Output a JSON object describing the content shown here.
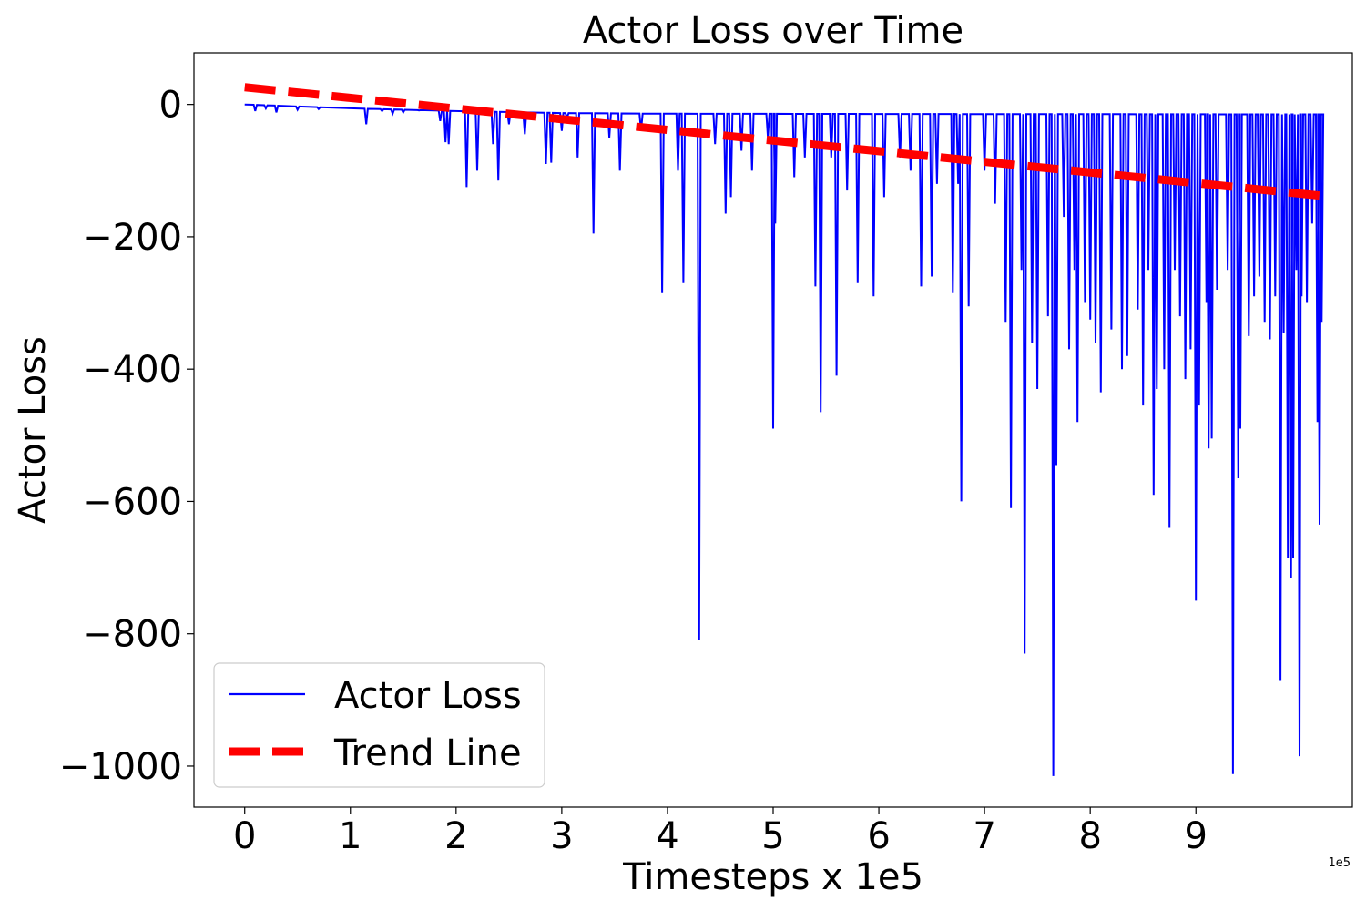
{
  "chart_data": {
    "type": "line",
    "title": "Actor Loss over Time",
    "xlabel": "Timesteps x 1e5",
    "ylabel": "Actor Loss",
    "x_offset_label": "1e5",
    "xlim": [
      -0.48,
      10.48
    ],
    "ylim": [
      -1062,
      78
    ],
    "x_ticks": [
      0,
      1,
      2,
      3,
      4,
      5,
      6,
      7,
      8,
      9
    ],
    "x_tick_labels": [
      "0",
      "1",
      "2",
      "3",
      "4",
      "5",
      "6",
      "7",
      "8",
      "9"
    ],
    "y_ticks": [
      0,
      -200,
      -400,
      -600,
      -800,
      -1000
    ],
    "y_tick_labels": [
      "0",
      "−200",
      "−400",
      "−600",
      "−800",
      "−1000"
    ],
    "grid": false,
    "legend_position": "lower-left",
    "series": [
      {
        "name": "Actor Loss",
        "style": "solid",
        "color": "#0000ff",
        "baseline": [
          [
            0,
            0
          ],
          [
            1.0,
            -6
          ],
          [
            2.0,
            -10
          ],
          [
            3.0,
            -13
          ],
          [
            4.0,
            -14
          ],
          [
            10.0,
            -15
          ]
        ],
        "spikes": [
          [
            0.1,
            -10
          ],
          [
            0.2,
            -6
          ],
          [
            0.3,
            -12
          ],
          [
            0.5,
            -8
          ],
          [
            0.7,
            -7
          ],
          [
            1.15,
            -30
          ],
          [
            1.3,
            -10
          ],
          [
            1.4,
            -14
          ],
          [
            1.5,
            -12
          ],
          [
            1.65,
            -9
          ],
          [
            1.85,
            -25
          ],
          [
            1.9,
            -57
          ],
          [
            1.93,
            -60
          ],
          [
            2.1,
            -125
          ],
          [
            2.2,
            -100
          ],
          [
            2.35,
            -60
          ],
          [
            2.4,
            -115
          ],
          [
            2.5,
            -30
          ],
          [
            2.65,
            -45
          ],
          [
            2.85,
            -90
          ],
          [
            2.9,
            -88
          ],
          [
            3.0,
            -40
          ],
          [
            3.05,
            -20
          ],
          [
            3.15,
            -80
          ],
          [
            3.3,
            -195
          ],
          [
            3.45,
            -50
          ],
          [
            3.55,
            -100
          ],
          [
            3.75,
            -40
          ],
          [
            3.95,
            -285
          ],
          [
            4.1,
            -100
          ],
          [
            4.15,
            -270
          ],
          [
            4.3,
            -810
          ],
          [
            4.45,
            -60
          ],
          [
            4.55,
            -165
          ],
          [
            4.6,
            -140
          ],
          [
            4.7,
            -70
          ],
          [
            4.8,
            -100
          ],
          [
            4.95,
            -50
          ],
          [
            5.0,
            -490
          ],
          [
            5.02,
            -180
          ],
          [
            5.2,
            -110
          ],
          [
            5.3,
            -80
          ],
          [
            5.4,
            -275
          ],
          [
            5.45,
            -465
          ],
          [
            5.55,
            -80
          ],
          [
            5.6,
            -410
          ],
          [
            5.7,
            -130
          ],
          [
            5.8,
            -270
          ],
          [
            5.95,
            -290
          ],
          [
            6.05,
            -140
          ],
          [
            6.2,
            -80
          ],
          [
            6.3,
            -100
          ],
          [
            6.4,
            -275
          ],
          [
            6.5,
            -260
          ],
          [
            6.55,
            -120
          ],
          [
            6.7,
            -285
          ],
          [
            6.75,
            -120
          ],
          [
            6.78,
            -600
          ],
          [
            6.85,
            -305
          ],
          [
            7.0,
            -100
          ],
          [
            7.1,
            -150
          ],
          [
            7.2,
            -330
          ],
          [
            7.25,
            -610
          ],
          [
            7.35,
            -250
          ],
          [
            7.38,
            -830
          ],
          [
            7.45,
            -360
          ],
          [
            7.5,
            -430
          ],
          [
            7.6,
            -320
          ],
          [
            7.65,
            -1015
          ],
          [
            7.68,
            -545
          ],
          [
            7.75,
            -170
          ],
          [
            7.8,
            -370
          ],
          [
            7.85,
            -250
          ],
          [
            7.88,
            -480
          ],
          [
            7.95,
            -300
          ],
          [
            8.0,
            -325
          ],
          [
            8.05,
            -360
          ],
          [
            8.1,
            -435
          ],
          [
            8.2,
            -340
          ],
          [
            8.3,
            -400
          ],
          [
            8.35,
            -380
          ],
          [
            8.45,
            -310
          ],
          [
            8.5,
            -455
          ],
          [
            8.55,
            -250
          ],
          [
            8.6,
            -590
          ],
          [
            8.63,
            -430
          ],
          [
            8.7,
            -400
          ],
          [
            8.75,
            -640
          ],
          [
            8.8,
            -250
          ],
          [
            8.85,
            -320
          ],
          [
            8.9,
            -415
          ],
          [
            8.95,
            -370
          ],
          [
            9.0,
            -750
          ],
          [
            9.03,
            -455
          ],
          [
            9.1,
            -300
          ],
          [
            9.12,
            -520
          ],
          [
            9.15,
            -505
          ],
          [
            9.2,
            -280
          ],
          [
            9.3,
            -250
          ],
          [
            9.35,
            -1012
          ],
          [
            9.4,
            -565
          ],
          [
            9.42,
            -490
          ],
          [
            9.5,
            -350
          ],
          [
            9.55,
            -290
          ],
          [
            9.6,
            -260
          ],
          [
            9.65,
            -330
          ],
          [
            9.7,
            -355
          ],
          [
            9.75,
            -290
          ],
          [
            9.8,
            -870
          ],
          [
            9.83,
            -345
          ],
          [
            9.87,
            -685
          ],
          [
            9.9,
            -715
          ],
          [
            9.92,
            -685
          ],
          [
            9.95,
            -250
          ],
          [
            9.98,
            -985
          ],
          [
            10.0,
            -290
          ],
          [
            10.05,
            -300
          ],
          [
            10.1,
            -180
          ],
          [
            10.15,
            -480
          ],
          [
            10.17,
            -635
          ],
          [
            10.19,
            -330
          ]
        ]
      },
      {
        "name": "Trend Line",
        "style": "dashed",
        "color": "#ff0000",
        "x": [
          0,
          10.19
        ],
        "y": [
          26,
          -138
        ]
      }
    ]
  }
}
